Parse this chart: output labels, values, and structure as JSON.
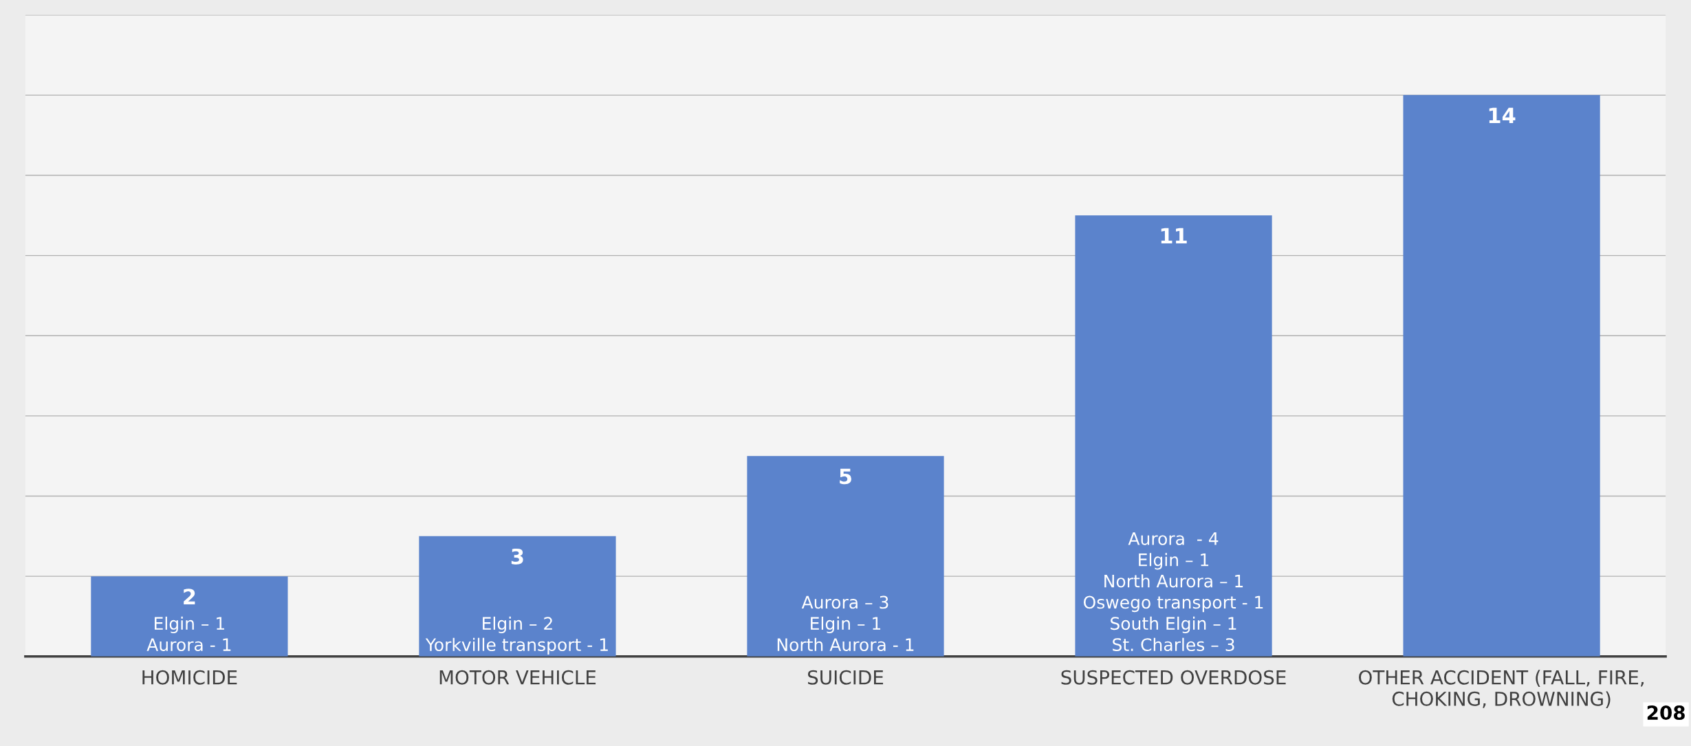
{
  "chart_data": {
    "type": "bar",
    "categories": [
      "HOMICIDE",
      "MOTOR VEHICLE",
      "SUICIDE",
      "SUSPECTED OVERDOSE",
      "OTHER ACCIDENT (FALL, FIRE,\nCHOKING, DROWNING)"
    ],
    "values": [
      2,
      3,
      5,
      11,
      14
    ],
    "color": "#5b83cc",
    "data_labels": true,
    "ylim": [
      0,
      16
    ],
    "yticks": [
      {
        "value": 0,
        "label": null
      },
      {
        "value": 2,
        "label": null
      },
      {
        "value": 4,
        "label": null
      },
      {
        "value": 6,
        "label": null
      },
      {
        "value": 8,
        "label": null
      },
      {
        "value": 10,
        "label": null
      },
      {
        "value": 12,
        "label": null
      },
      {
        "value": 14,
        "label": null
      },
      {
        "value": 16,
        "label": null
      }
    ],
    "tick_labels": "x",
    "grid": "y",
    "annotations": [
      "Elgin – 1\nAurora - 1",
      "Elgin – 2\nYorkville transport - 1",
      "Aurora – 3\nElgin – 1\nNorth Aurora - 1",
      "Aurora  - 4\nElgin – 1\nNorth Aurora – 1\nOswego transport - 1\nSouth Elgin – 1\nSt. Charles – 3",
      "208"
    ]
  }
}
